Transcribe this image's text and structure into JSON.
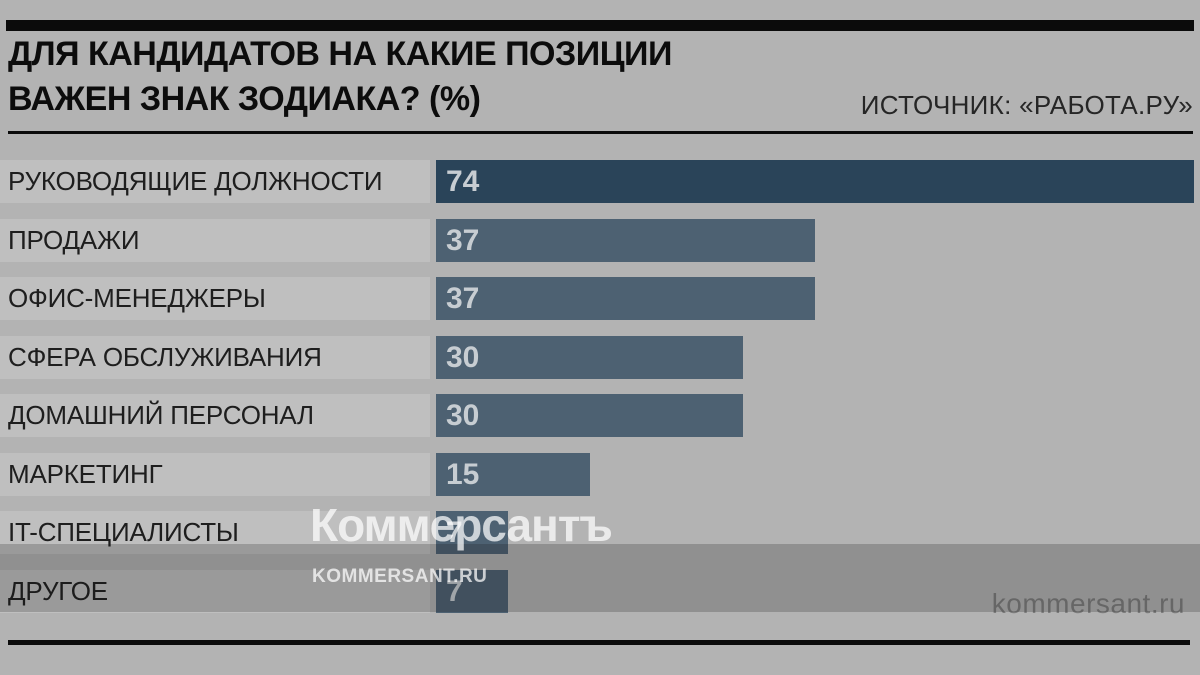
{
  "header": {
    "title_line1": "ДЛЯ КАНДИДАТОВ НА КАКИЕ ПОЗИЦИИ",
    "title_line2": "ВАЖЕН ЗНАК ЗОДИАКА? (%)",
    "source": "ИСТОЧНИК: «РАБОТА.РУ»"
  },
  "watermark": {
    "logo": "Коммерсантъ",
    "logo_sub": "KOMMERSANT.RU",
    "site": "kommersant.ru"
  },
  "colors": {
    "page_bg": "#b3b3b3",
    "row_label_bg": "#bfbfbf",
    "bar_leader": "#2a4459",
    "bar_default": "#4d6172",
    "value_text": "#c7cdd2",
    "label_text": "#1e1e1e",
    "rule_black": "#0b0b0b"
  },
  "chart_data": {
    "type": "bar",
    "orientation": "horizontal",
    "title": "ДЛЯ КАНДИДАТОВ НА КАКИЕ ПОЗИЦИИ ВАЖЕН ЗНАК ЗОДИАКА? (%)",
    "source": "ИСТОЧНИК: «РАБОТА.РУ»",
    "unit": "%",
    "xlim": [
      0,
      74
    ],
    "grid": false,
    "legend": "none",
    "value_labels": "inside-left",
    "categories": [
      "РУКОВОДЯЩИЕ ДОЛЖНОСТИ",
      "ПРОДАЖИ",
      "ОФИС-МЕНЕДЖЕРЫ",
      "СФЕРА ОБСЛУЖИВАНИЯ",
      "ДОМАШНИЙ ПЕРСОНАЛ",
      "МАРКЕТИНГ",
      "IT-СПЕЦИАЛИСТЫ",
      "ДРУГОЕ"
    ],
    "values": [
      74,
      37,
      37,
      30,
      30,
      15,
      7,
      7
    ]
  }
}
